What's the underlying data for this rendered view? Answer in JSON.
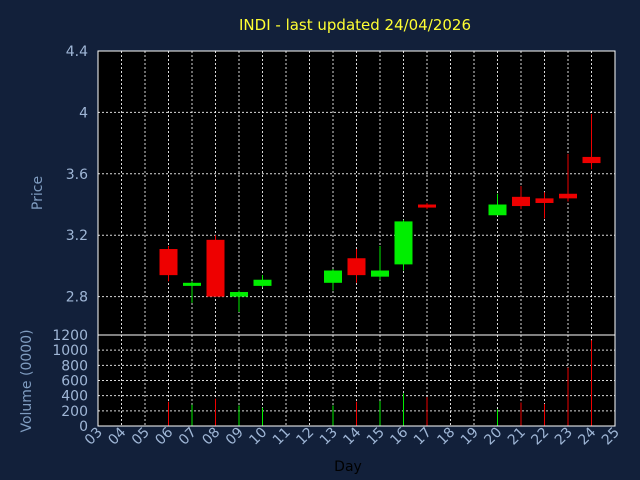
{
  "chart_data": {
    "type": "candlestick",
    "title": "INDI - last updated 24/04/2026",
    "price_axis": {
      "label": "Price",
      "ylim": [
        2.55,
        4.4
      ],
      "ticks": [
        "4.4",
        "4",
        "3.6",
        "3.2",
        "2.8"
      ],
      "tick_values": [
        4.4,
        4.0,
        3.6,
        3.2,
        2.8
      ]
    },
    "volume_axis": {
      "label": "Volume (0000)",
      "ylim": [
        0,
        1200
      ],
      "ticks": [
        "1200",
        "1000",
        "800",
        "600",
        "400",
        "200",
        "0"
      ],
      "tick_values": [
        1200,
        1000,
        800,
        600,
        400,
        200,
        0
      ]
    },
    "xlabel": "Day",
    "x_ticks": [
      "03",
      "04",
      "05",
      "06",
      "07",
      "08",
      "09",
      "10",
      "11",
      "12",
      "13",
      "14",
      "15",
      "16",
      "17",
      "18",
      "19",
      "20",
      "21",
      "22",
      "23",
      "24",
      "25"
    ],
    "grid": true,
    "colors": {
      "up": "#00ee00",
      "down": "#ee0000",
      "background": "#12203a",
      "plot": "#000000",
      "grid": "#ffffff",
      "title": "#ffff33"
    },
    "candles": [
      {
        "day": "06",
        "open": 3.11,
        "high": 3.13,
        "low": 2.9,
        "close": 2.94,
        "volume": 320
      },
      {
        "day": "07",
        "open": 2.87,
        "high": 2.9,
        "low": 2.76,
        "close": 2.89,
        "volume": 280
      },
      {
        "day": "08",
        "open": 3.17,
        "high": 3.2,
        "low": 2.8,
        "close": 2.8,
        "volume": 360
      },
      {
        "day": "09",
        "open": 2.8,
        "high": 2.84,
        "low": 2.7,
        "close": 2.83,
        "volume": 270
      },
      {
        "day": "10",
        "open": 2.87,
        "high": 2.94,
        "low": 2.86,
        "close": 2.91,
        "volume": 240
      },
      {
        "day": "13",
        "open": 2.89,
        "high": 2.98,
        "low": 2.84,
        "close": 2.97,
        "volume": 270
      },
      {
        "day": "14",
        "open": 3.05,
        "high": 3.11,
        "low": 2.89,
        "close": 2.94,
        "volume": 320
      },
      {
        "day": "15",
        "open": 2.93,
        "high": 3.13,
        "low": 2.91,
        "close": 2.97,
        "volume": 330
      },
      {
        "day": "16",
        "open": 3.01,
        "high": 3.3,
        "low": 2.97,
        "close": 3.29,
        "volume": 430
      },
      {
        "day": "17",
        "open": 3.4,
        "high": 3.41,
        "low": 3.37,
        "close": 3.38,
        "volume": 380
      },
      {
        "day": "20",
        "open": 3.33,
        "high": 3.47,
        "low": 3.33,
        "close": 3.4,
        "volume": 220
      },
      {
        "day": "21",
        "open": 3.45,
        "high": 3.52,
        "low": 3.37,
        "close": 3.39,
        "volume": 310
      },
      {
        "day": "22",
        "open": 3.44,
        "high": 3.48,
        "low": 3.31,
        "close": 3.41,
        "volume": 290
      },
      {
        "day": "23",
        "open": 3.47,
        "high": 3.73,
        "low": 3.42,
        "close": 3.44,
        "volume": 770
      },
      {
        "day": "24",
        "open": 3.71,
        "high": 3.99,
        "low": 3.63,
        "close": 3.67,
        "volume": 1130
      }
    ]
  }
}
